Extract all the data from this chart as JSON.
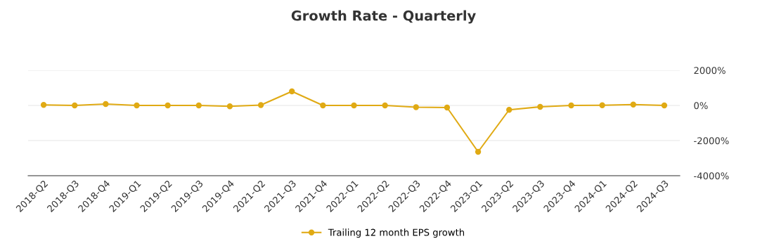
{
  "chart_data": {
    "type": "line",
    "title": "Growth Rate - Quarterly",
    "categories": [
      "2018-Q2",
      "2018-Q3",
      "2018-Q4",
      "2019-Q1",
      "2019-Q2",
      "2019-Q3",
      "2019-Q4",
      "2021-Q2",
      "2021-Q3",
      "2021-Q4",
      "2022-Q1",
      "2022-Q2",
      "2022-Q3",
      "2022-Q4",
      "2023-Q1",
      "2023-Q2",
      "2023-Q3",
      "2023-Q4",
      "2024-Q1",
      "2024-Q2",
      "2024-Q3"
    ],
    "series": [
      {
        "name": "Trailing 12 month EPS growth",
        "color": "#e0aa14",
        "values": [
          30,
          0,
          80,
          0,
          0,
          0,
          -50,
          20,
          800,
          0,
          0,
          0,
          -100,
          -120,
          -2640,
          -250,
          -80,
          0,
          10,
          50,
          0
        ]
      }
    ],
    "ylim": [
      -4000,
      2000
    ],
    "yticks": [
      {
        "value": 2000,
        "label": "2000%"
      },
      {
        "value": 0,
        "label": "0%"
      },
      {
        "value": -2000,
        "label": "-2000%"
      },
      {
        "value": -4000,
        "label": "-4000%"
      }
    ],
    "grid": "y",
    "legend": "bottom",
    "marker": "circle",
    "line_style": "solid"
  }
}
